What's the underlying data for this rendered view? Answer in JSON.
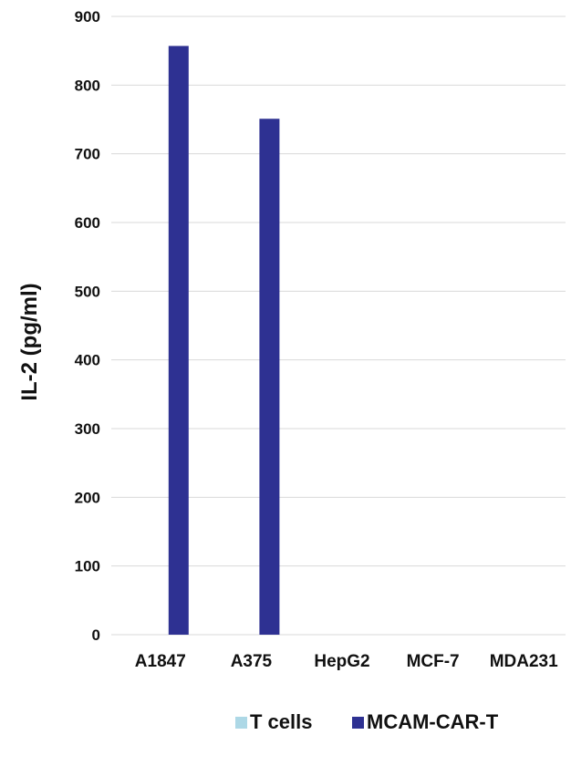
{
  "chart_data": {
    "type": "bar",
    "title": "",
    "xlabel": "",
    "ylabel": "IL-2 (pg/ml)",
    "ylim": [
      0,
      900
    ],
    "yticks": [
      0,
      100,
      200,
      300,
      400,
      500,
      600,
      700,
      800,
      900
    ],
    "grid": true,
    "legend_position": "bottom",
    "categories": [
      "A1847",
      "A375",
      "HepG2",
      "MCF-7",
      "MDA231"
    ],
    "series": [
      {
        "name": "T cells",
        "color": "#add8e6",
        "values": [
          0,
          0,
          0,
          0,
          0
        ]
      },
      {
        "name": "MCAM-CAR-T",
        "color": "#2e3192",
        "values": [
          857,
          751,
          0,
          0,
          0
        ]
      }
    ]
  }
}
